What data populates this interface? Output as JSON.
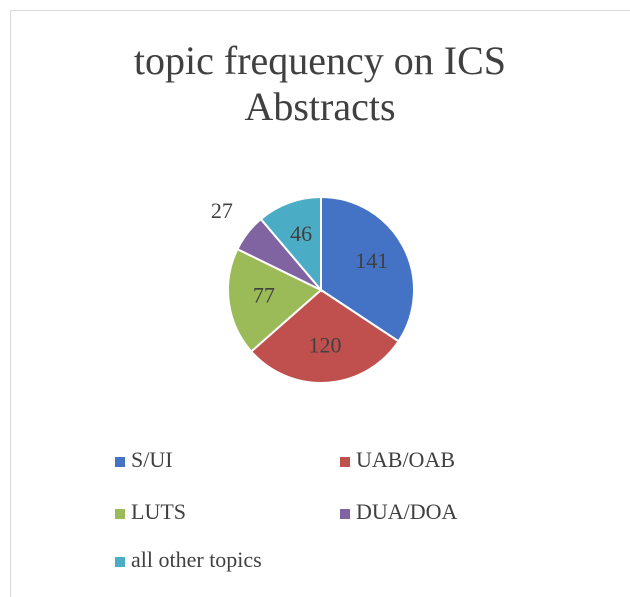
{
  "chart_data": {
    "type": "pie",
    "title": "topic frequency on ICS Abstracts",
    "categories": [
      "S/UI",
      "UAB/OAB",
      "LUTS",
      "DUA/DOA",
      "all other topics"
    ],
    "values": [
      141,
      120,
      77,
      27,
      46
    ],
    "colors": [
      "#4472c4",
      "#c0504d",
      "#9bbb59",
      "#8064a2",
      "#4bacc6"
    ],
    "legend": "bottom"
  }
}
